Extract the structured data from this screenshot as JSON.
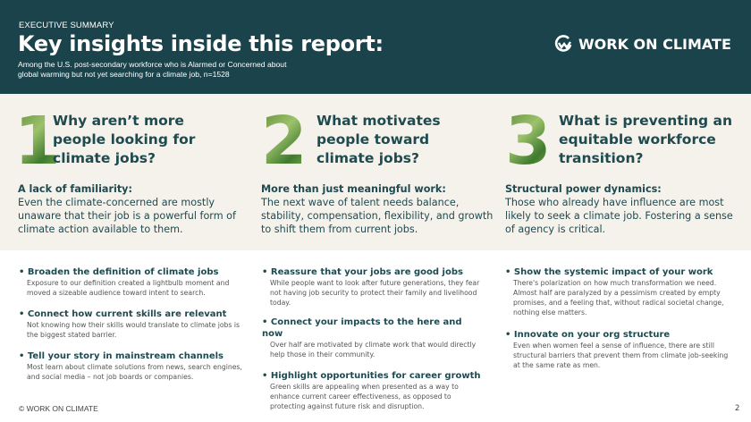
{
  "header": {
    "eyebrow": "EXECUTIVE SUMMARY",
    "title": "Key insights inside this report:",
    "subtitle": "Among the U.S. post-secondary workforce who is Alarmed or Concerned about global warming but not yet searching for a climate job, n=1528",
    "logo_text": "WORK ON CLIMATE"
  },
  "columns": [
    {
      "number": "1",
      "question": "Why aren’t more people looking for climate jobs?",
      "lead_title": "A lack of familiarity:",
      "lead_text": "Even the climate-concerned are mostly unaware that their job is a powerful form of climate action available to them.",
      "items": [
        {
          "h": "Broaden the definition of climate jobs",
          "b": "Exposure to our definition created a lightbulb moment and moved a sizeable audience toward intent to search."
        },
        {
          "h": "Connect how current skills are relevant",
          "b": "Not knowing how their skills would translate to climate jobs is the biggest stated barrier."
        },
        {
          "h": "Tell your story in mainstream channels",
          "b": "Most learn about climate solutions from news, search engines, and social media – not job boards or companies."
        }
      ]
    },
    {
      "number": "2",
      "question": "What motivates people toward climate jobs?",
      "lead_title": "More than just meaningful work:",
      "lead_text": "The next wave of talent needs balance, stability, compensation, flexibility, and growth to shift them from current jobs.",
      "items": [
        {
          "h": "Reassure that your jobs are good jobs",
          "b": "While people want to look after future generations, they fear not having job security to protect their family and livelihood today."
        },
        {
          "h": "Connect your impacts to the here and now",
          "b": "Over half are motivated by climate work that would directly help those in their community."
        },
        {
          "h": "Highlight opportunities for career growth",
          "b": "Green skills are appealing when presented as a way to enhance current career effectiveness, as opposed to protecting against future risk and disruption."
        }
      ]
    },
    {
      "number": "3",
      "question": "What is preventing an equitable workforce transition?",
      "lead_title": "Structural power dynamics:",
      "lead_text": "Those who already have influence are most likely to seek a climate job. Fostering a sense of agency is critical.",
      "items": [
        {
          "h": "Show the systemic impact of your work",
          "b": "There's polarization on how much transformation we need. Almost half are paralyzed by a pessimism created by empty promises, and a feeling that, without radical societal change, nothing else matters."
        },
        {
          "h": "Innovate on your org structure",
          "b": "Even when women feel a sense of influence, there are still structural barriers that prevent them from climate job-seeking at the same rate as men."
        }
      ]
    }
  ],
  "footer": {
    "copyright": "© WORK ON CLIMATE",
    "page": "2"
  }
}
